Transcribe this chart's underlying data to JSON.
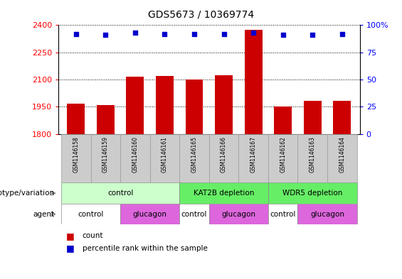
{
  "title": "GDS5673 / 10369774",
  "samples": [
    "GSM1146158",
    "GSM1146159",
    "GSM1146160",
    "GSM1146161",
    "GSM1146165",
    "GSM1146166",
    "GSM1146167",
    "GSM1146162",
    "GSM1146163",
    "GSM1146164"
  ],
  "counts": [
    1968,
    1960,
    2115,
    2120,
    2100,
    2125,
    2375,
    1952,
    1982,
    1982
  ],
  "percentile_ranks": [
    92,
    91,
    93,
    92,
    92,
    92,
    93,
    91,
    91,
    92
  ],
  "y_min": 1800,
  "y_max": 2400,
  "y_ticks": [
    1800,
    1950,
    2100,
    2250,
    2400
  ],
  "right_y_ticks": [
    0,
    25,
    50,
    75,
    100
  ],
  "bar_color": "#CC0000",
  "dot_color": "#0000CC",
  "genotype_groups": [
    {
      "label": "control",
      "start": 0,
      "end": 4,
      "color": "#ccffcc"
    },
    {
      "label": "KAT2B depletion",
      "start": 4,
      "end": 7,
      "color": "#66ee66"
    },
    {
      "label": "WDR5 depletion",
      "start": 7,
      "end": 10,
      "color": "#66ee66"
    }
  ],
  "agent_groups": [
    {
      "label": "control",
      "start": 0,
      "end": 2,
      "color": "#ee88ee"
    },
    {
      "label": "glucagon",
      "start": 2,
      "end": 4,
      "color": "#ee88ee"
    },
    {
      "label": "control",
      "start": 4,
      "end": 5,
      "color": "#ee88ee"
    },
    {
      "label": "glucagon",
      "start": 5,
      "end": 7,
      "color": "#ee88ee"
    },
    {
      "label": "control",
      "start": 7,
      "end": 8,
      "color": "#ee88ee"
    },
    {
      "label": "glucagon",
      "start": 8,
      "end": 10,
      "color": "#ee88ee"
    }
  ],
  "agent_control_color": "#ee88ee",
  "agent_glucagon_color": "#ee88ee",
  "genotype_label": "genotype/variation",
  "agent_label": "agent",
  "legend_count_label": "count",
  "legend_percentile_label": "percentile rank within the sample",
  "sample_bg_color": "#cccccc",
  "bar_color_red": "#CC0000",
  "dot_color_blue": "#0000CC"
}
